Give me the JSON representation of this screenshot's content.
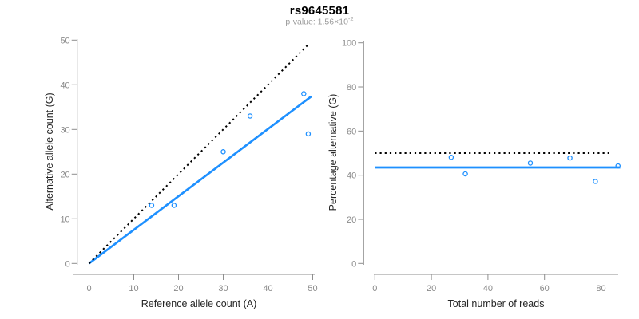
{
  "header": {
    "title": "rs9645581",
    "p_value_prefix": "p-value: 1.56×10",
    "p_value_exponent": "-2"
  },
  "style": {
    "accent_blue": "#1e90ff",
    "line_black": "#000000",
    "axis_gray": "#8e8e8e",
    "tick_label_gray": "#8a8a8a",
    "axis_title_color": "#262626",
    "subtitle_gray": "#9b9b9b",
    "background": "#ffffff"
  },
  "chart_data": [
    {
      "type": "scatter",
      "name": "allele-count-scatter",
      "xlabel": "Reference allele count (A)",
      "ylabel": "Alternative allele count (G)",
      "xlim": [
        0,
        50
      ],
      "ylim": [
        0,
        50
      ],
      "xticks": [
        0,
        10,
        20,
        30,
        40,
        50
      ],
      "yticks": [
        0,
        10,
        20,
        30,
        40,
        50
      ],
      "grid": false,
      "legend": null,
      "points": [
        [
          14,
          13
        ],
        [
          19,
          13
        ],
        [
          30,
          25
        ],
        [
          36,
          33
        ],
        [
          48,
          38
        ],
        [
          49,
          29
        ]
      ],
      "lines": [
        {
          "name": "fit-line",
          "style": "solid",
          "color": "#1e90ff",
          "width": 2.7,
          "x1": 0,
          "y1": 0,
          "x2": 49.7,
          "y2": 37.4
        },
        {
          "name": "identity-line",
          "style": "dotted",
          "color": "#000000",
          "width": 2,
          "x1": 0,
          "y1": 0,
          "x2": 49,
          "y2": 49
        }
      ]
    },
    {
      "type": "scatter",
      "name": "percentage-vs-reads-scatter",
      "xlabel": "Total number of reads",
      "ylabel": "Percentage alternative (G)",
      "xlim": [
        0,
        88
      ],
      "ylim": [
        0,
        100
      ],
      "xticks": [
        0,
        20,
        40,
        60,
        80
      ],
      "yticks": [
        0,
        20,
        40,
        60,
        80,
        100
      ],
      "grid": false,
      "legend": null,
      "points": [
        [
          27,
          48.1
        ],
        [
          32,
          40.6
        ],
        [
          55,
          45.5
        ],
        [
          69,
          47.8
        ],
        [
          78,
          37.2
        ],
        [
          86,
          44.2
        ]
      ],
      "lines": [
        {
          "name": "mean-percentage-line",
          "style": "solid",
          "color": "#1e90ff",
          "width": 2.7,
          "x1": 0,
          "y1": 43.5,
          "x2": 86.8,
          "y2": 43.5
        },
        {
          "name": "null-percentage-line",
          "style": "dotted",
          "color": "#000000",
          "width": 2,
          "x1": 0,
          "y1": 50,
          "x2": 84,
          "y2": 50
        }
      ]
    }
  ]
}
